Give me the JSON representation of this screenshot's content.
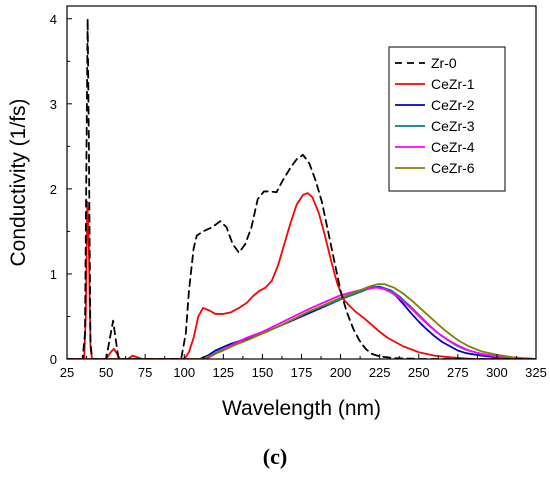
{
  "caption": "(c)",
  "chart_data": {
    "type": "line",
    "xlabel": "Wavelength (nm)",
    "ylabel": "Conductivity (1/fs)",
    "xlim": [
      25,
      325
    ],
    "ylim": [
      0,
      4.15
    ],
    "xticks": [
      25,
      50,
      75,
      100,
      125,
      150,
      175,
      200,
      225,
      250,
      275,
      300,
      325
    ],
    "yticks": [
      0,
      1,
      2,
      3,
      4
    ],
    "grid": false,
    "legend_position": "top-right",
    "series": [
      {
        "name": "Zr-0",
        "color": "#000000",
        "dash": "dashed",
        "points": [
          [
            25,
            0
          ],
          [
            35,
            0
          ],
          [
            36.5,
            0.3
          ],
          [
            37.5,
            2.5
          ],
          [
            38.2,
            4.0
          ],
          [
            39,
            2.5
          ],
          [
            40,
            0.2
          ],
          [
            41,
            0
          ],
          [
            50,
            0
          ],
          [
            53,
            0.3
          ],
          [
            54.5,
            0.45
          ],
          [
            56,
            0.25
          ],
          [
            58,
            0
          ],
          [
            98,
            0
          ],
          [
            101,
            0.3
          ],
          [
            103,
            0.8
          ],
          [
            106,
            1.3
          ],
          [
            108,
            1.45
          ],
          [
            112,
            1.5
          ],
          [
            118,
            1.55
          ],
          [
            123,
            1.62
          ],
          [
            127,
            1.55
          ],
          [
            131,
            1.35
          ],
          [
            135,
            1.25
          ],
          [
            139,
            1.35
          ],
          [
            143,
            1.55
          ],
          [
            147,
            1.88
          ],
          [
            151,
            1.97
          ],
          [
            155,
            1.97
          ],
          [
            159,
            1.96
          ],
          [
            163,
            2.1
          ],
          [
            168,
            2.25
          ],
          [
            172,
            2.35
          ],
          [
            176,
            2.4
          ],
          [
            180,
            2.3
          ],
          [
            184,
            2.1
          ],
          [
            188,
            1.85
          ],
          [
            192,
            1.5
          ],
          [
            196,
            1.15
          ],
          [
            200,
            0.8
          ],
          [
            204,
            0.55
          ],
          [
            208,
            0.36
          ],
          [
            212,
            0.22
          ],
          [
            216,
            0.12
          ],
          [
            220,
            0.06
          ],
          [
            225,
            0.03
          ],
          [
            235,
            0.01
          ],
          [
            250,
            0
          ],
          [
            325,
            0
          ]
        ]
      },
      {
        "name": "CeZr-1",
        "color": "#ff0000",
        "dash": "solid",
        "points": [
          [
            25,
            0
          ],
          [
            36,
            0
          ],
          [
            37,
            0.5
          ],
          [
            38,
            1.85
          ],
          [
            39,
            1.3
          ],
          [
            40,
            0.15
          ],
          [
            41,
            0
          ],
          [
            50,
            0
          ],
          [
            53,
            0.08
          ],
          [
            55,
            0.12
          ],
          [
            57,
            0.06
          ],
          [
            59,
            0
          ],
          [
            64,
            0
          ],
          [
            67,
            0.04
          ],
          [
            70,
            0.02
          ],
          [
            73,
            0
          ],
          [
            100,
            0
          ],
          [
            103,
            0.08
          ],
          [
            106,
            0.25
          ],
          [
            109,
            0.5
          ],
          [
            112,
            0.6
          ],
          [
            116,
            0.57
          ],
          [
            120,
            0.53
          ],
          [
            125,
            0.53
          ],
          [
            130,
            0.55
          ],
          [
            135,
            0.6
          ],
          [
            140,
            0.66
          ],
          [
            144,
            0.74
          ],
          [
            148,
            0.8
          ],
          [
            152,
            0.84
          ],
          [
            156,
            0.92
          ],
          [
            160,
            1.1
          ],
          [
            164,
            1.35
          ],
          [
            168,
            1.6
          ],
          [
            172,
            1.82
          ],
          [
            176,
            1.93
          ],
          [
            179,
            1.95
          ],
          [
            182,
            1.9
          ],
          [
            186,
            1.72
          ],
          [
            190,
            1.45
          ],
          [
            194,
            1.15
          ],
          [
            198,
            0.88
          ],
          [
            202,
            0.7
          ],
          [
            206,
            0.62
          ],
          [
            210,
            0.55
          ],
          [
            215,
            0.48
          ],
          [
            220,
            0.4
          ],
          [
            225,
            0.32
          ],
          [
            230,
            0.25
          ],
          [
            240,
            0.15
          ],
          [
            250,
            0.08
          ],
          [
            260,
            0.04
          ],
          [
            270,
            0.02
          ],
          [
            285,
            0
          ],
          [
            325,
            0
          ]
        ]
      },
      {
        "name": "CeZr-2",
        "color": "#0000cc",
        "dash": "solid",
        "points": [
          [
            25,
            0
          ],
          [
            110,
            0
          ],
          [
            115,
            0.04
          ],
          [
            120,
            0.1
          ],
          [
            130,
            0.18
          ],
          [
            140,
            0.24
          ],
          [
            150,
            0.3
          ],
          [
            160,
            0.38
          ],
          [
            170,
            0.46
          ],
          [
            180,
            0.54
          ],
          [
            190,
            0.62
          ],
          [
            200,
            0.7
          ],
          [
            210,
            0.78
          ],
          [
            220,
            0.84
          ],
          [
            225,
            0.85
          ],
          [
            230,
            0.82
          ],
          [
            235,
            0.75
          ],
          [
            240,
            0.65
          ],
          [
            245,
            0.54
          ],
          [
            250,
            0.44
          ],
          [
            255,
            0.35
          ],
          [
            260,
            0.27
          ],
          [
            265,
            0.2
          ],
          [
            270,
            0.15
          ],
          [
            275,
            0.1
          ],
          [
            280,
            0.07
          ],
          [
            290,
            0.04
          ],
          [
            300,
            0.02
          ],
          [
            310,
            0.01
          ],
          [
            325,
            0
          ]
        ]
      },
      {
        "name": "CeZr-3",
        "color": "#008080",
        "dash": "solid",
        "points": [
          [
            25,
            0
          ],
          [
            112,
            0
          ],
          [
            117,
            0.04
          ],
          [
            122,
            0.09
          ],
          [
            130,
            0.15
          ],
          [
            140,
            0.22
          ],
          [
            150,
            0.3
          ],
          [
            160,
            0.38
          ],
          [
            170,
            0.47
          ],
          [
            180,
            0.56
          ],
          [
            190,
            0.63
          ],
          [
            200,
            0.7
          ],
          [
            210,
            0.77
          ],
          [
            217,
            0.82
          ],
          [
            222,
            0.84
          ],
          [
            226,
            0.84
          ],
          [
            232,
            0.81
          ],
          [
            238,
            0.73
          ],
          [
            244,
            0.63
          ],
          [
            250,
            0.52
          ],
          [
            256,
            0.41
          ],
          [
            262,
            0.31
          ],
          [
            268,
            0.23
          ],
          [
            274,
            0.16
          ],
          [
            280,
            0.11
          ],
          [
            290,
            0.06
          ],
          [
            300,
            0.03
          ],
          [
            310,
            0.01
          ],
          [
            325,
            0
          ]
        ]
      },
      {
        "name": "CeZr-4",
        "color": "#ff00ff",
        "dash": "solid",
        "points": [
          [
            25,
            0
          ],
          [
            114,
            0
          ],
          [
            119,
            0.05
          ],
          [
            125,
            0.11
          ],
          [
            132,
            0.18
          ],
          [
            140,
            0.25
          ],
          [
            150,
            0.32
          ],
          [
            160,
            0.41
          ],
          [
            170,
            0.5
          ],
          [
            180,
            0.59
          ],
          [
            190,
            0.67
          ],
          [
            200,
            0.75
          ],
          [
            210,
            0.8
          ],
          [
            218,
            0.83
          ],
          [
            223,
            0.84
          ],
          [
            228,
            0.82
          ],
          [
            234,
            0.77
          ],
          [
            240,
            0.68
          ],
          [
            246,
            0.58
          ],
          [
            252,
            0.47
          ],
          [
            258,
            0.37
          ],
          [
            264,
            0.28
          ],
          [
            270,
            0.21
          ],
          [
            276,
            0.15
          ],
          [
            282,
            0.1
          ],
          [
            290,
            0.06
          ],
          [
            300,
            0.03
          ],
          [
            310,
            0.01
          ],
          [
            325,
            0
          ]
        ]
      },
      {
        "name": "CeZr-6",
        "color": "#808000",
        "dash": "solid",
        "points": [
          [
            25,
            0
          ],
          [
            112,
            0
          ],
          [
            118,
            0.05
          ],
          [
            125,
            0.1
          ],
          [
            133,
            0.17
          ],
          [
            140,
            0.22
          ],
          [
            150,
            0.3
          ],
          [
            160,
            0.38
          ],
          [
            170,
            0.47
          ],
          [
            180,
            0.56
          ],
          [
            190,
            0.64
          ],
          [
            200,
            0.72
          ],
          [
            210,
            0.79
          ],
          [
            218,
            0.85
          ],
          [
            224,
            0.88
          ],
          [
            228,
            0.88
          ],
          [
            234,
            0.84
          ],
          [
            240,
            0.77
          ],
          [
            246,
            0.68
          ],
          [
            252,
            0.58
          ],
          [
            258,
            0.48
          ],
          [
            264,
            0.38
          ],
          [
            270,
            0.29
          ],
          [
            276,
            0.21
          ],
          [
            282,
            0.15
          ],
          [
            290,
            0.09
          ],
          [
            300,
            0.05
          ],
          [
            310,
            0.02
          ],
          [
            325,
            0
          ]
        ]
      }
    ]
  }
}
